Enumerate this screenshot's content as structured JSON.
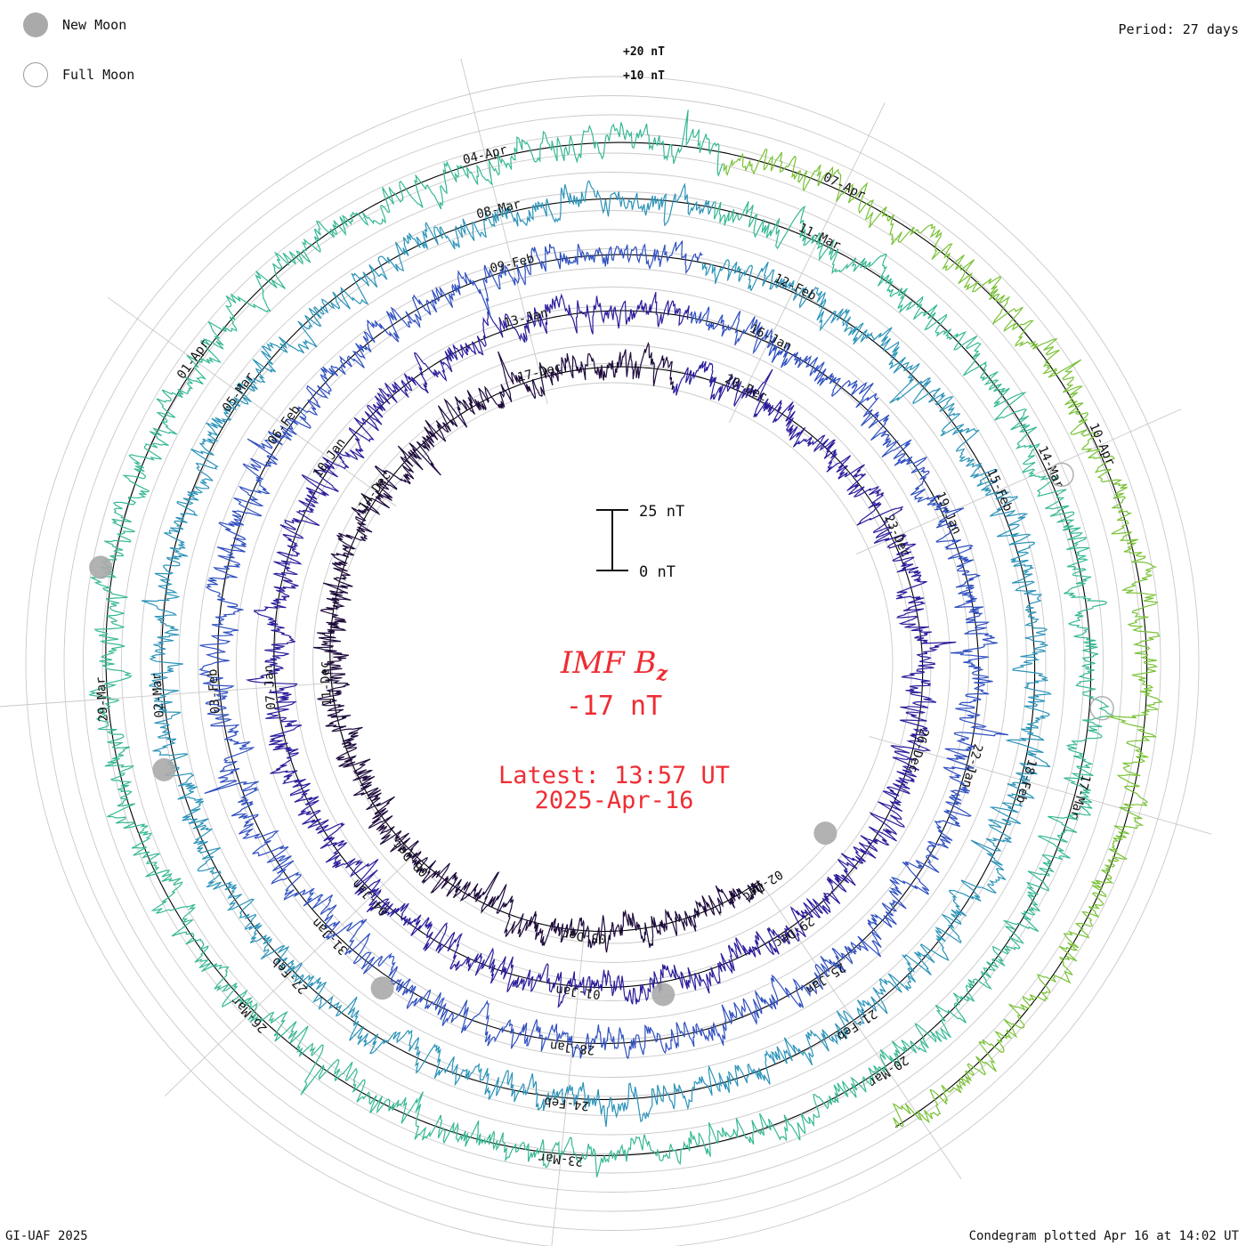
{
  "legend": {
    "new_moon_label": "New Moon",
    "full_moon_label": "Full Moon",
    "new_moon_color": "#aaaaaa",
    "full_moon_color": "#ffffff"
  },
  "period_label": "Period: 27 days",
  "footer": {
    "credit": "GI-UAF 2025",
    "plotted": "Condegram plotted Apr 16 at 14:02 UT"
  },
  "center": {
    "quantity": "IMF B",
    "subscript": "z",
    "value": "-17 nT",
    "latest_line1": "Latest: 13:57 UT",
    "latest_line2": "2025-Apr-16",
    "text_color": "#ee2d34"
  },
  "chart_data": {
    "type": "line",
    "subtype": "condegram-spiral",
    "period_days": 27,
    "quantity": "IMF Bz",
    "unit": "nT",
    "scale_bar": {
      "top_label": "25 nT",
      "bottom_label": "0 nT",
      "span_nT": 25
    },
    "reference_labels": [
      "+20 nT",
      "+10 nT"
    ],
    "ring_colors": [
      "#1e0b3c",
      "#2a1d9b",
      "#2f4fc0",
      "#2b93b8",
      "#36b894",
      "#79c236",
      "#b3ad12",
      "#c0930c",
      "#c06a10",
      "#c23a0e",
      "#bf0d0d"
    ],
    "date_labels": [
      {
        "ring": 0,
        "day": 10,
        "text": "02-Dec"
      },
      {
        "ring": 0,
        "day": 13,
        "text": "05-Dec"
      },
      {
        "ring": 0,
        "day": 16,
        "text": "08-Dec"
      },
      {
        "ring": 0,
        "day": 19,
        "text": "11-Dec"
      },
      {
        "ring": 0,
        "day": 22,
        "text": "14-Dec"
      },
      {
        "ring": 0,
        "day": 25,
        "text": "17-Dec"
      },
      {
        "ring": 1,
        "day": 1,
        "text": "20-Dec"
      },
      {
        "ring": 1,
        "day": 4,
        "text": "23-Dec"
      },
      {
        "ring": 1,
        "day": 7,
        "text": "26-Dec"
      },
      {
        "ring": 1,
        "day": 10,
        "text": "29-Dec"
      },
      {
        "ring": 1,
        "day": 13,
        "text": "01-Jan"
      },
      {
        "ring": 1,
        "day": 16,
        "text": "04-Jan"
      },
      {
        "ring": 1,
        "day": 19,
        "text": "07-Jan"
      },
      {
        "ring": 1,
        "day": 22,
        "text": "10-Jan"
      },
      {
        "ring": 1,
        "day": 25,
        "text": "13-Jan"
      },
      {
        "ring": 2,
        "day": 1,
        "text": "16-Jan"
      },
      {
        "ring": 2,
        "day": 4,
        "text": "19-Jan"
      },
      {
        "ring": 2,
        "day": 7,
        "text": "22-Jan"
      },
      {
        "ring": 2,
        "day": 10,
        "text": "25-Jan"
      },
      {
        "ring": 2,
        "day": 13,
        "text": "28-Jan"
      },
      {
        "ring": 2,
        "day": 16,
        "text": "31-Jan"
      },
      {
        "ring": 2,
        "day": 19,
        "text": "03-Feb"
      },
      {
        "ring": 2,
        "day": 22,
        "text": "06-Feb"
      },
      {
        "ring": 2,
        "day": 25,
        "text": "09-Feb"
      },
      {
        "ring": 3,
        "day": 1,
        "text": "12-Feb"
      },
      {
        "ring": 3,
        "day": 4,
        "text": "15-Feb"
      },
      {
        "ring": 3,
        "day": 7,
        "text": "18-Feb"
      },
      {
        "ring": 3,
        "day": 10,
        "text": "21-Feb"
      },
      {
        "ring": 3,
        "day": 13,
        "text": "24-Feb"
      },
      {
        "ring": 3,
        "day": 16,
        "text": "27-Feb"
      },
      {
        "ring": 3,
        "day": 19,
        "text": "02-Mar"
      },
      {
        "ring": 3,
        "day": 22,
        "text": "05-Mar"
      },
      {
        "ring": 3,
        "day": 25,
        "text": "08-Mar"
      },
      {
        "ring": 4,
        "day": 1,
        "text": "11-Mar"
      },
      {
        "ring": 4,
        "day": 4,
        "text": "14-Mar"
      },
      {
        "ring": 4,
        "day": 7,
        "text": "17-Mar"
      },
      {
        "ring": 4,
        "day": 10,
        "text": "20-Mar"
      },
      {
        "ring": 4,
        "day": 13,
        "text": "23-Mar"
      },
      {
        "ring": 4,
        "day": 16,
        "text": "26-Mar"
      },
      {
        "ring": 4,
        "day": 19,
        "text": "29-Mar"
      },
      {
        "ring": 4,
        "day": 22,
        "text": "01-Apr"
      },
      {
        "ring": 4,
        "day": 25,
        "text": "04-Apr"
      },
      {
        "ring": 5,
        "day": 1,
        "text": "07-Apr"
      },
      {
        "ring": 5,
        "day": 4,
        "text": "10-Apr"
      }
    ],
    "new_moons": [
      {
        "ring": 0,
        "day": 8.7
      },
      {
        "ring": 1,
        "day": 11.9
      },
      {
        "ring": 2,
        "day": 15.2
      },
      {
        "ring": 3,
        "day": 18.3
      },
      {
        "ring": 4,
        "day": 20.1
      }
    ],
    "full_moons": [
      {
        "ring": 4,
        "day": 4.1
      },
      {
        "ring": 4,
        "day": 6.2
      }
    ],
    "latest": {
      "day": 10.2,
      "value_nT": -17
    }
  }
}
